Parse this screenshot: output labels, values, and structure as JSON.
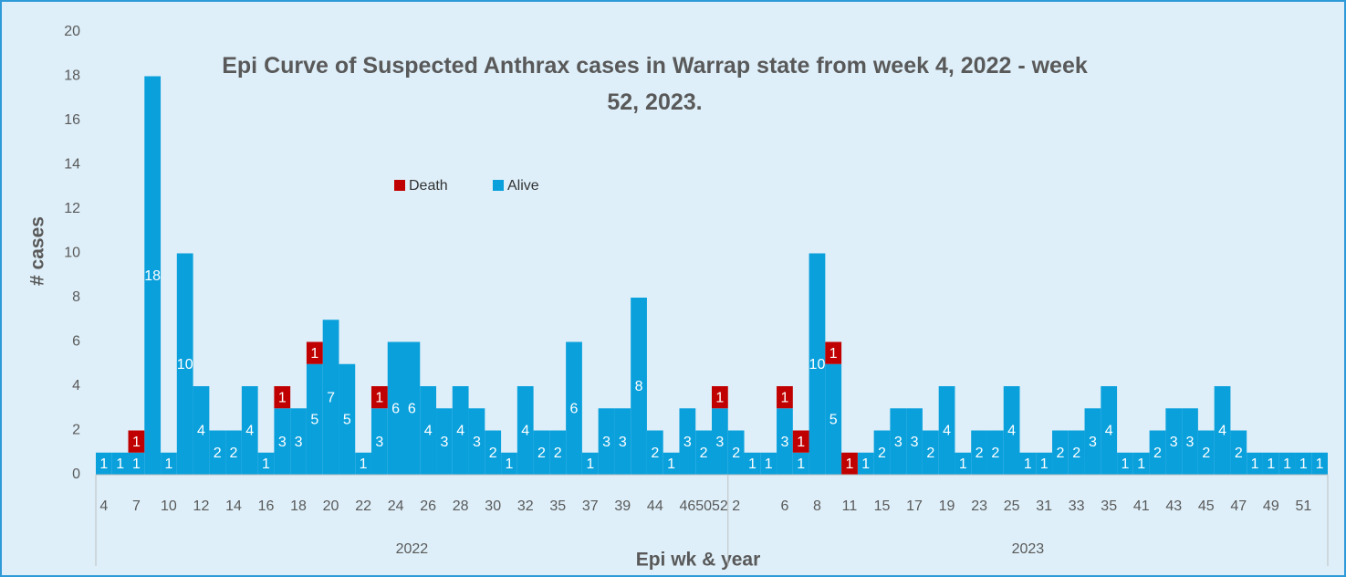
{
  "chart_data": {
    "type": "bar",
    "stacked": true,
    "title": "Epi Curve of Suspected Anthrax cases in Warrap state from week 4, 2022 - week 52, 2023.",
    "y_label": "# cases",
    "x_label": "Epi wk & year",
    "categories": [
      "4",
      null,
      "7",
      null,
      "10",
      null,
      "12",
      null,
      "14",
      null,
      "16",
      null,
      "18",
      null,
      "20",
      null,
      "22",
      null,
      "24",
      null,
      "26",
      null,
      "28",
      null,
      "30",
      null,
      "32",
      null,
      "35",
      null,
      "37",
      null,
      "39",
      null,
      "44",
      null,
      "46",
      "50",
      "52",
      "2",
      null,
      null,
      "6",
      null,
      "8",
      null,
      "11",
      null,
      "15",
      null,
      "17",
      null,
      "19",
      null,
      "23",
      null,
      "25",
      null,
      "31",
      null,
      "33",
      null,
      "35",
      null,
      "41",
      null,
      "43",
      null,
      "45",
      null,
      "47",
      null,
      "49",
      null,
      "51",
      null
    ],
    "year_groups": [
      {
        "name": "2022",
        "size": 39
      },
      {
        "name": "2023",
        "size": 37
      }
    ],
    "series": [
      {
        "name": "Death",
        "color": "#c00000",
        "values": [
          null,
          null,
          1,
          null,
          null,
          null,
          null,
          null,
          null,
          null,
          null,
          1,
          null,
          1,
          null,
          null,
          null,
          1,
          null,
          null,
          null,
          null,
          null,
          null,
          null,
          null,
          null,
          null,
          null,
          null,
          null,
          null,
          null,
          null,
          null,
          null,
          null,
          null,
          1,
          null,
          null,
          null,
          1,
          1,
          null,
          1,
          1,
          null,
          null,
          null,
          null,
          null,
          null,
          null,
          null,
          null,
          null,
          null,
          null,
          null,
          null,
          null,
          null,
          null,
          null,
          null,
          null,
          null,
          null,
          null,
          null,
          null,
          null,
          null,
          null,
          null
        ]
      },
      {
        "name": "Alive",
        "color": "#0aa0dc",
        "values": [
          1,
          1,
          1,
          18,
          1,
          10,
          4,
          2,
          2,
          4,
          1,
          3,
          3,
          5,
          7,
          5,
          1,
          3,
          6,
          6,
          4,
          3,
          4,
          3,
          2,
          1,
          4,
          2,
          2,
          6,
          1,
          3,
          3,
          8,
          2,
          1,
          3,
          2,
          3,
          2,
          1,
          1,
          3,
          1,
          10,
          5,
          null,
          1,
          2,
          3,
          3,
          2,
          4,
          1,
          2,
          2,
          4,
          1,
          1,
          2,
          2,
          3,
          4,
          1,
          1,
          2,
          3,
          3,
          2,
          4,
          2,
          1,
          1,
          1,
          1,
          1
        ]
      }
    ],
    "ylim": [
      0,
      20
    ],
    "yticks": [
      0,
      2,
      4,
      6,
      8,
      10,
      12,
      14,
      16,
      18,
      20
    ],
    "grid": false
  }
}
